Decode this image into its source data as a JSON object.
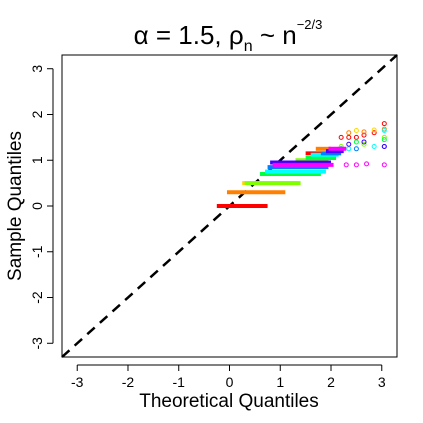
{
  "chart_data": {
    "type": "scatter",
    "title": {
      "alpha_symbol": "α",
      "alpha_part": " = 1.5, ",
      "rho_symbol": "ρ",
      "rho_subscript": "n",
      "tilde_part": " ~ n",
      "exponent": "−2/3"
    },
    "xlabel": "Theoretical Quantiles",
    "ylabel": "Sample Quantiles",
    "xlim": [
      -3.3,
      3.3
    ],
    "ylim": [
      -3.3,
      3.3
    ],
    "xticks": [
      -3,
      -2,
      -1,
      0,
      1,
      2,
      3
    ],
    "yticks": [
      -3,
      -2,
      -1,
      0,
      1,
      2,
      3
    ],
    "x_tick_labels": [
      "-3",
      "-2",
      "-1",
      "0",
      "1",
      "2",
      "3"
    ],
    "y_tick_labels": [
      "-3",
      "-2",
      "-1",
      "0",
      "1",
      "2",
      "3"
    ],
    "grid": false,
    "reference_line": {
      "style": "dashed",
      "color": "#000000",
      "slope": 1,
      "intercept": 0
    },
    "series": [
      {
        "color": "#ff0000",
        "segments": [
          [
            -0.25,
            0.75,
            0.0
          ],
          [
            1.5,
            2.0,
            1.15
          ]
        ],
        "open_points": [
          [
            2.2,
            1.5
          ],
          [
            2.35,
            1.5
          ],
          [
            2.5,
            1.5
          ],
          [
            2.65,
            1.55
          ],
          [
            2.85,
            1.6
          ],
          [
            3.05,
            1.8
          ]
        ]
      },
      {
        "color": "#ff8000",
        "segments": [
          [
            -0.05,
            1.1,
            0.3
          ],
          [
            1.7,
            2.0,
            1.25
          ]
        ],
        "open_points": [
          [
            2.35,
            1.6
          ],
          [
            2.65,
            1.62
          ],
          [
            3.05,
            1.68
          ]
        ]
      },
      {
        "color": "#ffd700",
        "segments": [
          [
            0.25,
            1.35,
            0.5
          ],
          [
            1.1,
            1.9,
            0.95
          ]
        ],
        "open_points": [
          [
            2.5,
            1.65
          ],
          [
            2.85,
            1.66
          ]
        ]
      },
      {
        "color": "#80ff00",
        "segments": [
          [
            0.3,
            1.4,
            0.5
          ],
          [
            1.3,
            1.95,
            1.0
          ]
        ],
        "open_points": [
          [
            2.2,
            1.3
          ],
          [
            2.65,
            1.35
          ],
          [
            3.05,
            1.5
          ]
        ]
      },
      {
        "color": "#00ff40",
        "segments": [
          [
            0.6,
            1.8,
            0.7
          ],
          [
            1.5,
            2.1,
            1.05
          ]
        ],
        "open_points": [
          [
            2.5,
            1.4
          ],
          [
            3.05,
            1.45
          ]
        ]
      },
      {
        "color": "#00ffff",
        "segments": [
          [
            0.7,
            1.9,
            0.75
          ],
          [
            1.6,
            2.15,
            1.12
          ]
        ],
        "open_points": [
          [
            2.35,
            1.25
          ],
          [
            2.85,
            1.3
          ],
          [
            3.05,
            1.65
          ]
        ]
      },
      {
        "color": "#0080ff",
        "segments": [
          [
            0.75,
            1.95,
            0.85
          ],
          [
            1.8,
            2.2,
            1.15
          ]
        ],
        "open_points": [
          [
            2.2,
            1.25
          ],
          [
            2.5,
            1.25
          ],
          [
            3.05,
            1.3
          ]
        ]
      },
      {
        "color": "#4000ff",
        "segments": [
          [
            0.8,
            2.0,
            0.95
          ],
          [
            1.9,
            2.25,
            1.2
          ]
        ],
        "open_points": [
          [
            2.35,
            1.35
          ],
          [
            2.65,
            1.4
          ],
          [
            3.05,
            1.3
          ]
        ]
      },
      {
        "color": "#ff00ff",
        "segments": [
          [
            0.85,
            2.05,
            0.9
          ],
          [
            1.95,
            2.3,
            1.25
          ]
        ],
        "open_points": [
          [
            2.3,
            0.9
          ],
          [
            2.5,
            0.9
          ],
          [
            2.7,
            0.92
          ],
          [
            3.05,
            0.9
          ]
        ]
      }
    ]
  }
}
